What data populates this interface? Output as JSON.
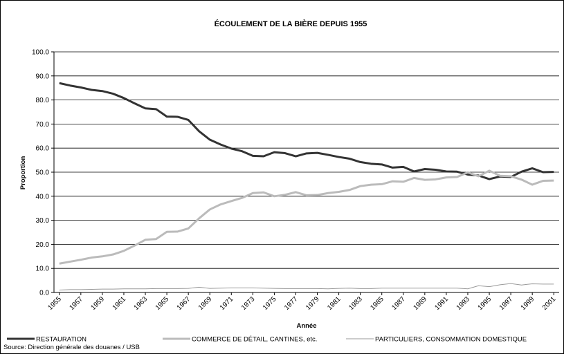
{
  "chart_data": {
    "type": "line",
    "title": "ÉCOULEMENT DE LA BIÈRE DEPUIS 1955",
    "x_label": "Année",
    "y_label": "Proportion",
    "source": "Source: Direction générale des douanes / USB",
    "x": [
      1955,
      1956,
      1957,
      1958,
      1959,
      1960,
      1961,
      1962,
      1963,
      1964,
      1965,
      1966,
      1967,
      1968,
      1969,
      1970,
      1971,
      1972,
      1973,
      1974,
      1975,
      1976,
      1977,
      1978,
      1979,
      1980,
      1981,
      1982,
      1983,
      1984,
      1985,
      1986,
      1987,
      1988,
      1989,
      1990,
      1991,
      1992,
      1993,
      1994,
      1995,
      1996,
      1997,
      1998,
      1999,
      2000,
      2001
    ],
    "xlim": [
      1954.5,
      2001.5
    ],
    "xticks": [
      1955,
      1957,
      1959,
      1961,
      1963,
      1965,
      1967,
      1969,
      1971,
      1973,
      1975,
      1977,
      1979,
      1981,
      1983,
      1985,
      1987,
      1989,
      1991,
      1993,
      1995,
      1997,
      1999,
      2001
    ],
    "ylim": [
      0,
      100
    ],
    "yticks": [
      {
        "value": 0,
        "label": "0.0"
      },
      {
        "value": 10,
        "label": "10.0"
      },
      {
        "value": 20,
        "label": "20.0"
      },
      {
        "value": 30,
        "label": "30.0"
      },
      {
        "value": 40,
        "label": "40.0"
      },
      {
        "value": 50,
        "label": "50.0"
      },
      {
        "value": 60,
        "label": "60.0"
      },
      {
        "value": 70,
        "label": "70.0"
      },
      {
        "value": 80,
        "label": "80.0"
      },
      {
        "value": 90,
        "label": "90.0"
      },
      {
        "value": 100,
        "label": "100.0"
      }
    ],
    "grid": true,
    "legend": "bottom",
    "series": [
      {
        "name": "RESTAURATION",
        "color": "#333333",
        "width": 3,
        "values": [
          87,
          86,
          85.2,
          84.2,
          83.7,
          82.6,
          80.8,
          78.6,
          76.5,
          76.2,
          73.1,
          73,
          71.7,
          67,
          63.5,
          61.5,
          59.8,
          58.7,
          56.8,
          56.6,
          58.3,
          57.9,
          56.6,
          57.8,
          58,
          57.2,
          56.3,
          55.6,
          54.2,
          53.5,
          53.2,
          51.9,
          52.2,
          50.3,
          51.3,
          51,
          50.3,
          50.2,
          49,
          48.6,
          47.1,
          48.2,
          48,
          50.2,
          51.6,
          50,
          50.1
        ]
      },
      {
        "name": "COMMERCE DE DÉTAIL, CANTINES, etc.",
        "color": "#bbbbbb",
        "width": 3,
        "values": [
          12,
          12.8,
          13.6,
          14.5,
          15,
          15.8,
          17.3,
          19.5,
          21.9,
          22.2,
          25.2,
          25.3,
          26.6,
          30.8,
          34.5,
          36.6,
          38,
          39.3,
          41.3,
          41.6,
          40,
          40.6,
          41.7,
          40.4,
          40.5,
          41.3,
          41.8,
          42.6,
          44.2,
          44.8,
          45,
          46.2,
          46,
          47.6,
          46.8,
          47,
          47.8,
          48,
          49.9,
          48.3,
          50.6,
          48.5,
          48.3,
          46.9,
          44.8,
          46.4,
          46.5
        ]
      },
      {
        "name": "PARTICULIERS, CONSOMMATION DOMESTIQUE",
        "color": "#999999",
        "width": 1,
        "values": [
          1,
          1.2,
          1.2,
          1.3,
          1.4,
          1.4,
          1.5,
          1.5,
          1.5,
          1.6,
          1.6,
          1.6,
          1.7,
          2.2,
          1.7,
          1.8,
          1.9,
          1.9,
          1.9,
          1.8,
          1.7,
          1.6,
          1.6,
          1.6,
          1.6,
          1.5,
          1.7,
          1.8,
          1.6,
          1.6,
          1.8,
          1.8,
          1.8,
          1.8,
          1.8,
          1.8,
          1.8,
          1.8,
          1.5,
          2.8,
          2.4,
          3.2,
          3.7,
          3.1,
          3.6,
          3.5,
          3.5
        ]
      }
    ]
  }
}
